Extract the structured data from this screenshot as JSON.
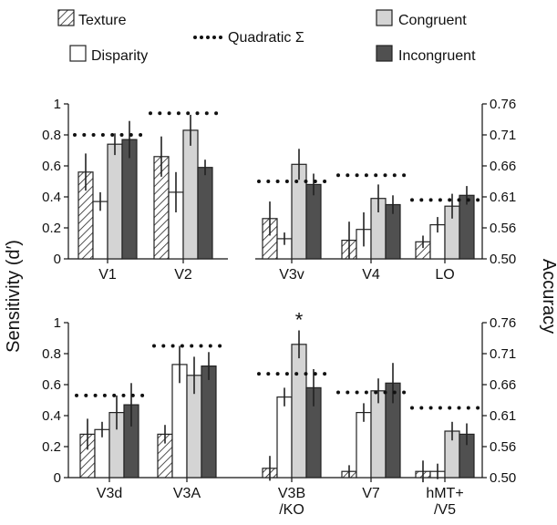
{
  "legend": {
    "texture": "Texture",
    "disparity": "Disparity",
    "quadratic": "Quadratic Σ",
    "congruent": "Congruent",
    "incongruent": "Incongruent"
  },
  "y_left_label": "Sensitivity (d′)",
  "y_right_label": "Accuracy",
  "y_left_ticks": [
    "0",
    "0.2",
    "0.4",
    "0.6",
    "0.8",
    "1"
  ],
  "y_right_ticks": [
    "0.50",
    "0.56",
    "0.61",
    "0.66",
    "0.71",
    "0.76"
  ],
  "colors": {
    "texture": "#ffffff",
    "disparity": "#ffffff",
    "congruent": "#d4d4d4",
    "incongruent": "#505050",
    "quadratic": "#111111"
  },
  "chart_data": {
    "type": "bar",
    "ylim": [
      0,
      1
    ],
    "series_names": [
      "Texture",
      "Disparity",
      "Congruent",
      "Incongruent"
    ],
    "panels": [
      {
        "areas": [
          {
            "label": "V1",
            "values": [
              0.56,
              0.37,
              0.74,
              0.77
            ],
            "errors": [
              0.12,
              0.06,
              0.07,
              0.12
            ],
            "quadratic": 0.8
          },
          {
            "label": "V2",
            "values": [
              0.66,
              0.43,
              0.83,
              0.59
            ],
            "errors": [
              0.13,
              0.13,
              0.1,
              0.05
            ],
            "quadratic": 0.94
          }
        ]
      },
      {
        "areas": [
          {
            "label": "V3v",
            "values": [
              0.26,
              0.13,
              0.61,
              0.48
            ],
            "errors": [
              0.11,
              0.04,
              0.1,
              0.07
            ],
            "quadratic": 0.5
          },
          {
            "label": "V4",
            "values": [
              0.12,
              0.19,
              0.39,
              0.35
            ],
            "errors": [
              0.12,
              0.11,
              0.09,
              0.06
            ],
            "quadratic": 0.54
          },
          {
            "label": "LO",
            "values": [
              0.11,
              0.22,
              0.34,
              0.41
            ],
            "errors": [
              0.04,
              0.05,
              0.08,
              0.06
            ],
            "quadratic": 0.38
          }
        ]
      },
      {
        "areas": [
          {
            "label": "V3d",
            "values": [
              0.28,
              0.31,
              0.42,
              0.47
            ],
            "errors": [
              0.1,
              0.05,
              0.11,
              0.14
            ],
            "quadratic": 0.53
          },
          {
            "label": "V3A",
            "values": [
              0.28,
              0.73,
              0.66,
              0.72
            ],
            "errors": [
              0.06,
              0.12,
              0.12,
              0.09
            ],
            "quadratic": 0.85
          },
          {
            "label": "V3B/KO",
            "values": [
              0.06,
              0.52,
              0.86,
              0.58
            ],
            "errors": [
              0.08,
              0.06,
              0.09,
              0.12
            ],
            "quadratic": 0.67,
            "annotation": "*"
          },
          {
            "label": "V7",
            "values": [
              0.04,
              0.42,
              0.56,
              0.61
            ],
            "errors": [
              0.04,
              0.06,
              0.08,
              0.13
            ],
            "quadratic": 0.55
          },
          {
            "label": "hMT+/V5",
            "values": [
              0.04,
              0.04,
              0.3,
              0.28
            ],
            "errors": [
              0.07,
              0.05,
              0.06,
              0.07
            ],
            "quadratic": 0.45
          }
        ]
      }
    ]
  }
}
